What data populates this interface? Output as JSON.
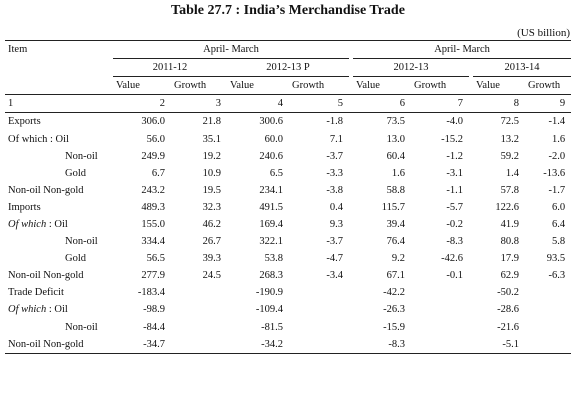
{
  "title": "Table 27.7 : India’s Merchandise Trade",
  "unit": "(US billion)",
  "header": {
    "item": "Item",
    "group1": "April- March",
    "group2": "April- March",
    "periods": [
      "2011-12",
      "2012-13 P",
      "2012-13",
      "2013-14"
    ],
    "value": "Value",
    "growth": "Growth",
    "colnums": [
      "1",
      "2",
      "3",
      "4",
      "5",
      "6",
      "7",
      "8",
      "9"
    ]
  },
  "rows": [
    {
      "label": "Exports",
      "indent": 0,
      "italic": false,
      "cells": [
        "306.0",
        "21.8",
        "300.6",
        "-1.8",
        "73.5",
        "-4.0",
        "72.5",
        "-1.4"
      ]
    },
    {
      "label": "Of which : Oil",
      "indent": 0,
      "italic": false,
      "cells": [
        "56.0",
        "35.1",
        "60.0",
        "7.1",
        "13.0",
        "-15.2",
        "13.2",
        "1.6"
      ]
    },
    {
      "label": "Non-oil",
      "indent": 1,
      "italic": false,
      "cells": [
        "249.9",
        "19.2",
        "240.6",
        "-3.7",
        "60.4",
        "-1.2",
        "59.2",
        "-2.0"
      ]
    },
    {
      "label": "Gold",
      "indent": 1,
      "italic": false,
      "cells": [
        "6.7",
        "10.9",
        "6.5",
        "-3.3",
        "1.6",
        "-3.1",
        "1.4",
        "-13.6"
      ]
    },
    {
      "label": "Non-oil Non-gold",
      "indent": 0,
      "italic": false,
      "cells": [
        "243.2",
        "19.5",
        "234.1",
        "-3.8",
        "58.8",
        "-1.1",
        "57.8",
        "-1.7"
      ]
    },
    {
      "label": "Imports",
      "indent": 0,
      "italic": false,
      "cells": [
        "489.3",
        "32.3",
        "491.5",
        "0.4",
        "115.7",
        "-5.7",
        "122.6",
        "6.0"
      ]
    },
    {
      "label_italic": "Of which",
      "label_rest": ": Oil",
      "indent": 0,
      "italic": true,
      "cells": [
        "155.0",
        "46.2",
        "169.4",
        "9.3",
        "39.4",
        "-0.2",
        "41.9",
        "6.4"
      ]
    },
    {
      "label": "Non-oil",
      "indent": 1,
      "italic": false,
      "cells": [
        "334.4",
        "26.7",
        "322.1",
        "-3.7",
        "76.4",
        "-8.3",
        "80.8",
        "5.8"
      ]
    },
    {
      "label": "Gold",
      "indent": 1,
      "italic": false,
      "cells": [
        "56.5",
        "39.3",
        "53.8",
        "-4.7",
        "9.2",
        "-42.6",
        "17.9",
        "93.5"
      ]
    },
    {
      "label": "Non-oil Non-gold",
      "indent": 0,
      "italic": false,
      "cells": [
        "277.9",
        "24.5",
        "268.3",
        "-3.4",
        "67.1",
        "-0.1",
        "62.9",
        "-6.3"
      ]
    },
    {
      "label": "Trade Deficit",
      "indent": 0,
      "italic": false,
      "cells": [
        "-183.4",
        "",
        "-190.9",
        "",
        "-42.2",
        "",
        "-50.2",
        ""
      ]
    },
    {
      "label_italic": "Of which",
      "label_rest": ": Oil",
      "indent": 0,
      "italic": true,
      "cells": [
        "-98.9",
        "",
        "-109.4",
        "",
        "-26.3",
        "",
        "-28.6",
        ""
      ]
    },
    {
      "label": "Non-oil",
      "indent": 1,
      "italic": false,
      "cells": [
        "-84.4",
        "",
        "-81.5",
        "",
        "-15.9",
        "",
        "-21.6",
        ""
      ]
    },
    {
      "label": "Non-oil Non-gold",
      "indent": 0,
      "italic": false,
      "cells": [
        "-34.7",
        "",
        "-34.2",
        "",
        "-8.3",
        "",
        "-5.1",
        ""
      ]
    }
  ]
}
